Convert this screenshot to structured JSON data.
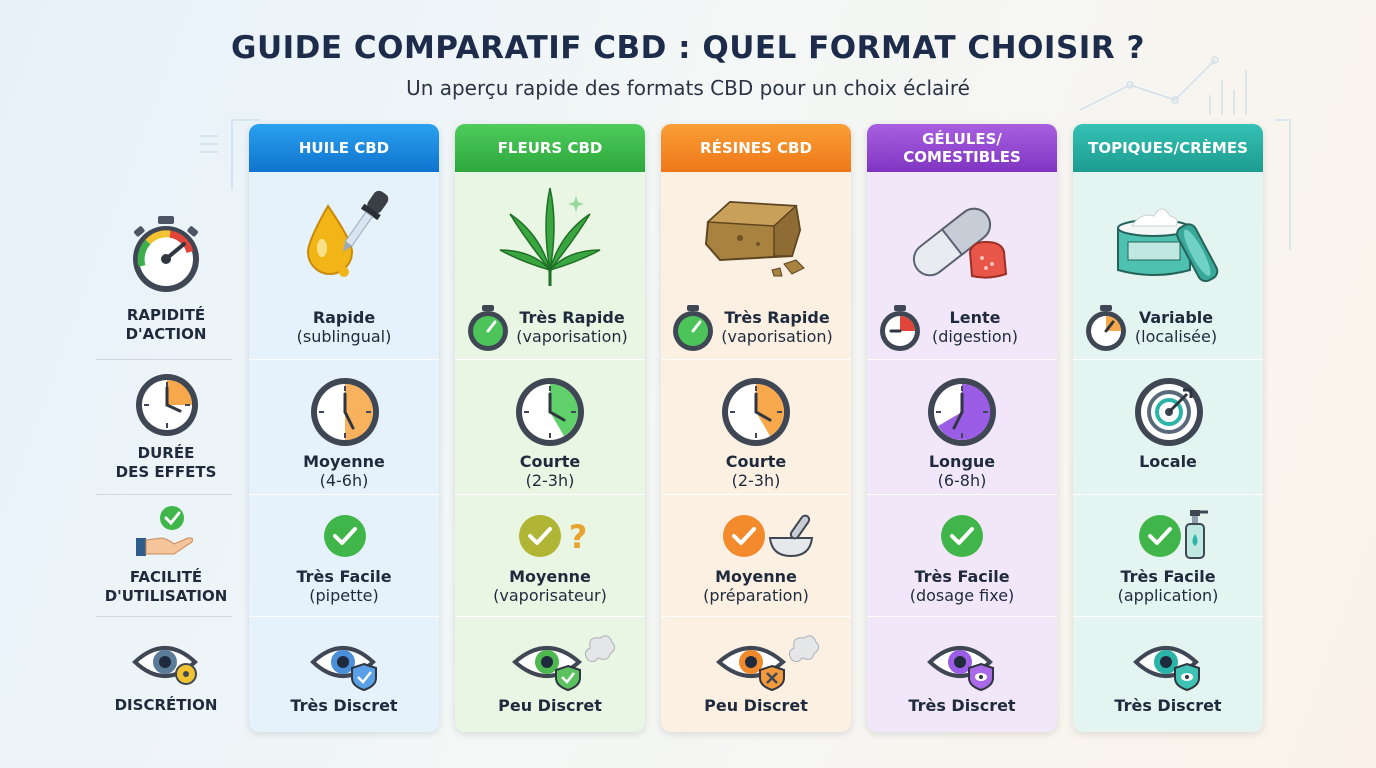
{
  "title": "GUIDE COMPARATIF CBD : QUEL FORMAT CHOISIR ?",
  "subtitle": "Un aperçu rapide des formats CBD pour un choix éclairé",
  "rows": [
    {
      "label_line1": "RAPIDITÉ",
      "label_line2": "D'ACTION",
      "icon": "stopwatch-gauge-icon"
    },
    {
      "label_line1": "DURÉE",
      "label_line2": "DES EFFETS",
      "icon": "clock-icon"
    },
    {
      "label_line1": "FACILITÉ",
      "label_line2": "D'UTILISATION",
      "icon": "hand-check-icon"
    },
    {
      "label_line1": "DISCRÉTION",
      "label_line2": "",
      "icon": "eye-icon"
    }
  ],
  "columns": [
    {
      "header_line1": "HUILE CBD",
      "header_line2": "",
      "color": "#1b8fe0",
      "color2": "#0e6fc8",
      "tint": "#e3f1fb",
      "product_icon": "oil-dropper-icon",
      "speed": {
        "main": "Rapide",
        "detail": "(sublingual)"
      },
      "duration": {
        "main": "Moyenne",
        "detail": "(4-6h)"
      },
      "ease": {
        "main": "Très Facile",
        "detail": "(pipette)"
      },
      "discretion": "Très Discret"
    },
    {
      "header_line1": "FLEURS CBD",
      "header_line2": "",
      "color": "#3fbf4e",
      "color2": "#2aa63a",
      "tint": "#e9f6e3",
      "product_icon": "cannabis-leaf-icon",
      "speed": {
        "main": "Très Rapide",
        "detail": "(vaporisation)"
      },
      "duration": {
        "main": "Courte",
        "detail": "(2-3h)"
      },
      "ease": {
        "main": "Moyenne",
        "detail": "(vaporisateur)"
      },
      "discretion": "Peu Discret"
    },
    {
      "header_line1": "RÉSINES CBD",
      "header_line2": "",
      "color": "#f7932a",
      "color2": "#ef7a1a",
      "tint": "#fcf0e2",
      "product_icon": "resin-block-icon",
      "speed": {
        "main": "Très Rapide",
        "detail": "(vaporisation)"
      },
      "duration": {
        "main": "Courte",
        "detail": "(2-3h)"
      },
      "ease": {
        "main": "Moyenne",
        "detail": "(préparation)"
      },
      "discretion": "Peu Discret"
    },
    {
      "header_line1": "GÉLULES/",
      "header_line2": "COMESTIBLES",
      "color": "#9a4fd6",
      "color2": "#8038c4",
      "tint": "#f1e7f8",
      "product_icon": "capsule-gummy-icon",
      "speed": {
        "main": "Lente",
        "detail": "(digestion)"
      },
      "duration": {
        "main": "Longue",
        "detail": "(6-8h)"
      },
      "ease": {
        "main": "Très Facile",
        "detail": "(dosage fixe)"
      },
      "discretion": "Très Discret"
    },
    {
      "header_line1": "TOPIQUES/CRÈMES",
      "header_line2": "",
      "color": "#2bb5a8",
      "color2": "#1f9c91",
      "tint": "#e3f4f1",
      "product_icon": "cream-jar-icon",
      "speed": {
        "main": "Variable",
        "detail": "(localisée)"
      },
      "duration": {
        "main": "Locale",
        "detail": ""
      },
      "ease": {
        "main": "Très Facile",
        "detail": "(application)"
      },
      "discretion": "Très Discret"
    }
  ]
}
